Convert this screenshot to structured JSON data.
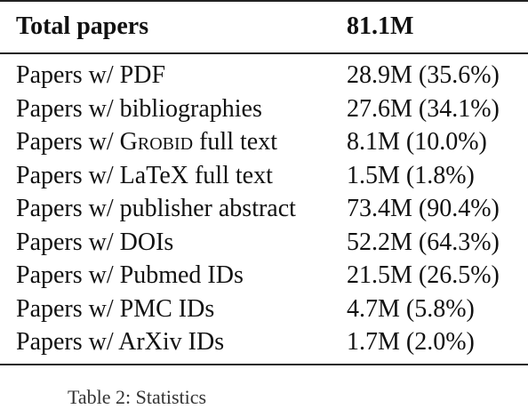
{
  "table": {
    "header": {
      "label": "Total papers",
      "value": "81.1M"
    },
    "rows": [
      {
        "prefix": "Papers w/ ",
        "label": "PDF",
        "value": "28.9M (35.6%)"
      },
      {
        "prefix": "Papers w/ ",
        "label": "bibliographies",
        "value": "27.6M (34.1%)"
      },
      {
        "prefix": "Papers w/ ",
        "label_sc": "Grobid",
        "label_suffix": " full text",
        "value": "8.1M (10.0%)"
      },
      {
        "prefix": "Papers w/ ",
        "label": "LaTeX full text",
        "value": "1.5M (1.8%)"
      },
      {
        "prefix": "Papers w/ ",
        "label": "publisher abstract",
        "value": "73.4M (90.4%)"
      },
      {
        "prefix": "Papers w/ ",
        "label": "DOIs",
        "value": "52.2M (64.3%)"
      },
      {
        "prefix": "Papers w/ ",
        "label": "Pubmed IDs",
        "value": "21.5M (26.5%)"
      },
      {
        "prefix": "Papers w/ ",
        "label": "PMC IDs",
        "value": "4.7M (5.8%)"
      },
      {
        "prefix": "Papers w/ ",
        "label": "ArXiv IDs",
        "value": "1.7M (2.0%)"
      }
    ]
  },
  "caption": "Table 2: Statistics"
}
